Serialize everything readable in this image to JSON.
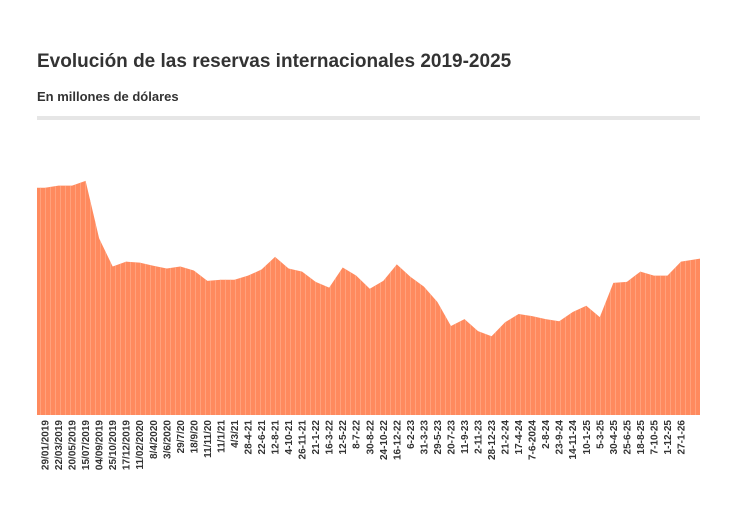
{
  "header": {
    "title": "Evolución de las reservas internacionales 2019-2025",
    "subtitle": "En millones de dólares"
  },
  "chart_data": {
    "type": "area",
    "title": "Evolución de las reservas internacionales 2019-2025",
    "subtitle": "En millones de dólares",
    "xlabel": "",
    "ylabel": "",
    "ylim": [
      0,
      78000
    ],
    "grid": false,
    "legend": "none",
    "color": "#FF8A5E",
    "x": [
      "29/01/2019",
      "22/03/2019",
      "20/05/2019",
      "15/07/2019",
      "04/09/2019",
      "25/10/2019",
      "17/12/2019",
      "11/02/2020",
      "8/4/2020",
      "3/6/2020",
      "29/7/20",
      "18/9/20",
      "11/11/20",
      "11/1/21",
      "4/3/21",
      "28-4-21",
      "22-6-21",
      "12-8-21",
      "4-10-21",
      "26-11-21",
      "21-1-22",
      "16-3-22",
      "12-5-22",
      "8-7-22",
      "30-8-22",
      "24-10-22",
      "16-12-22",
      "6-2-23",
      "31-3-23",
      "29-5-23",
      "20-7-23",
      "11-9-23",
      "2-11-23",
      "28-12-23",
      "21-2-24",
      "17-4-24",
      "7-6-2024",
      "2-8-24",
      "23-9-24",
      "14-11-24",
      "10-1-25",
      "5-3-25",
      "30-4-25",
      "25-6-25",
      "18-8-25",
      "7-10-25",
      "1-12-25",
      "27-1-26"
    ],
    "values": [
      66400,
      67000,
      67000,
      68400,
      51600,
      43400,
      44800,
      44500,
      43600,
      42800,
      43400,
      42200,
      39200,
      39500,
      39500,
      40700,
      42500,
      46200,
      42800,
      41900,
      38900,
      37200,
      43100,
      40700,
      36900,
      39200,
      44000,
      40400,
      37500,
      33000,
      26000,
      28000,
      24500,
      23000,
      27100,
      29500,
      28900,
      28000,
      27400,
      30100,
      31900,
      28600,
      38600,
      38900,
      41900,
      40700,
      40700,
      44800
    ]
  }
}
